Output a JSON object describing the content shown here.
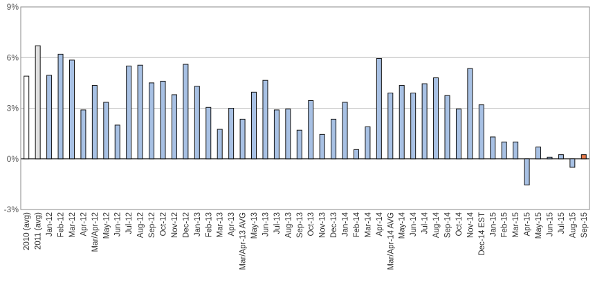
{
  "chart_data": {
    "type": "bar",
    "title": "",
    "xlabel": "",
    "ylabel": "",
    "ylim": [
      -3,
      9
    ],
    "yticks": [
      -3,
      0,
      3,
      6,
      9
    ],
    "ytick_labels": [
      "-3%",
      "0%",
      "3%",
      "6%",
      "9%"
    ],
    "grid": true,
    "legend": "none",
    "categories": [
      "2010 (avg)",
      "2011 (avg)",
      "Jan-12",
      "Feb-12",
      "Mar-12",
      "Apr-12",
      "Mar/Apr-12",
      "May-12",
      "Jun-12",
      "Jul-12",
      "Aug-12",
      "Sep-12",
      "Oct-12",
      "Nov-12",
      "Dec-12",
      "Jan-13",
      "Feb-13",
      "Mar-13",
      "Apr-13",
      "Mar/Apr-13 AVG",
      "May-13",
      "Jun-13",
      "Jul-13",
      "Aug-13",
      "Sep-13",
      "Oct-13",
      "Nov-13",
      "Dec-13",
      "Jan-14",
      "Feb-14",
      "Mar-14",
      "Apr-14",
      "Mar/Apr-14 AVG",
      "May-14",
      "Jun-14",
      "Jul-14",
      "Aug-14",
      "Sep-14",
      "Oct-14",
      "Nov-14",
      "Dec-14 EST",
      "Jan-15",
      "Feb-15",
      "Mar-15",
      "Apr-15",
      "May-15",
      "Jun-15",
      "Jul-15",
      "Aug-15",
      "Sep-15"
    ],
    "values": [
      4.9,
      6.7,
      4.95,
      6.2,
      5.85,
      2.9,
      4.35,
      3.35,
      2.0,
      5.5,
      5.55,
      4.5,
      4.6,
      3.8,
      5.6,
      4.3,
      3.05,
      1.75,
      3.0,
      2.35,
      3.95,
      4.65,
      2.9,
      2.95,
      1.7,
      3.45,
      1.45,
      2.35,
      3.35,
      0.55,
      1.9,
      5.95,
      3.9,
      4.35,
      3.9,
      4.45,
      4.8,
      3.75,
      2.95,
      5.35,
      3.2,
      1.3,
      1.0,
      1.0,
      -1.55,
      0.7,
      0.1,
      0.25,
      -0.5,
      0.25
    ],
    "colors": {
      "annual_avg": "#ffffff",
      "annual_avg_2011": "#e0e0e0",
      "monthly": "#a8c1e4",
      "latest": "#e8794a",
      "bar_outline": "#111111",
      "grid": "#bfbfbf",
      "axis_frame": "#888888",
      "zero_line": "#222222"
    },
    "bar_color_keys": [
      "annual_avg",
      "annual_avg_2011",
      "monthly",
      "monthly",
      "monthly",
      "monthly",
      "monthly",
      "monthly",
      "monthly",
      "monthly",
      "monthly",
      "monthly",
      "monthly",
      "monthly",
      "monthly",
      "monthly",
      "monthly",
      "monthly",
      "monthly",
      "monthly",
      "monthly",
      "monthly",
      "monthly",
      "monthly",
      "monthly",
      "monthly",
      "monthly",
      "monthly",
      "monthly",
      "monthly",
      "monthly",
      "monthly",
      "monthly",
      "monthly",
      "monthly",
      "monthly",
      "monthly",
      "monthly",
      "monthly",
      "monthly",
      "monthly",
      "monthly",
      "monthly",
      "monthly",
      "monthly",
      "monthly",
      "monthly",
      "monthly",
      "monthly",
      "latest"
    ]
  }
}
